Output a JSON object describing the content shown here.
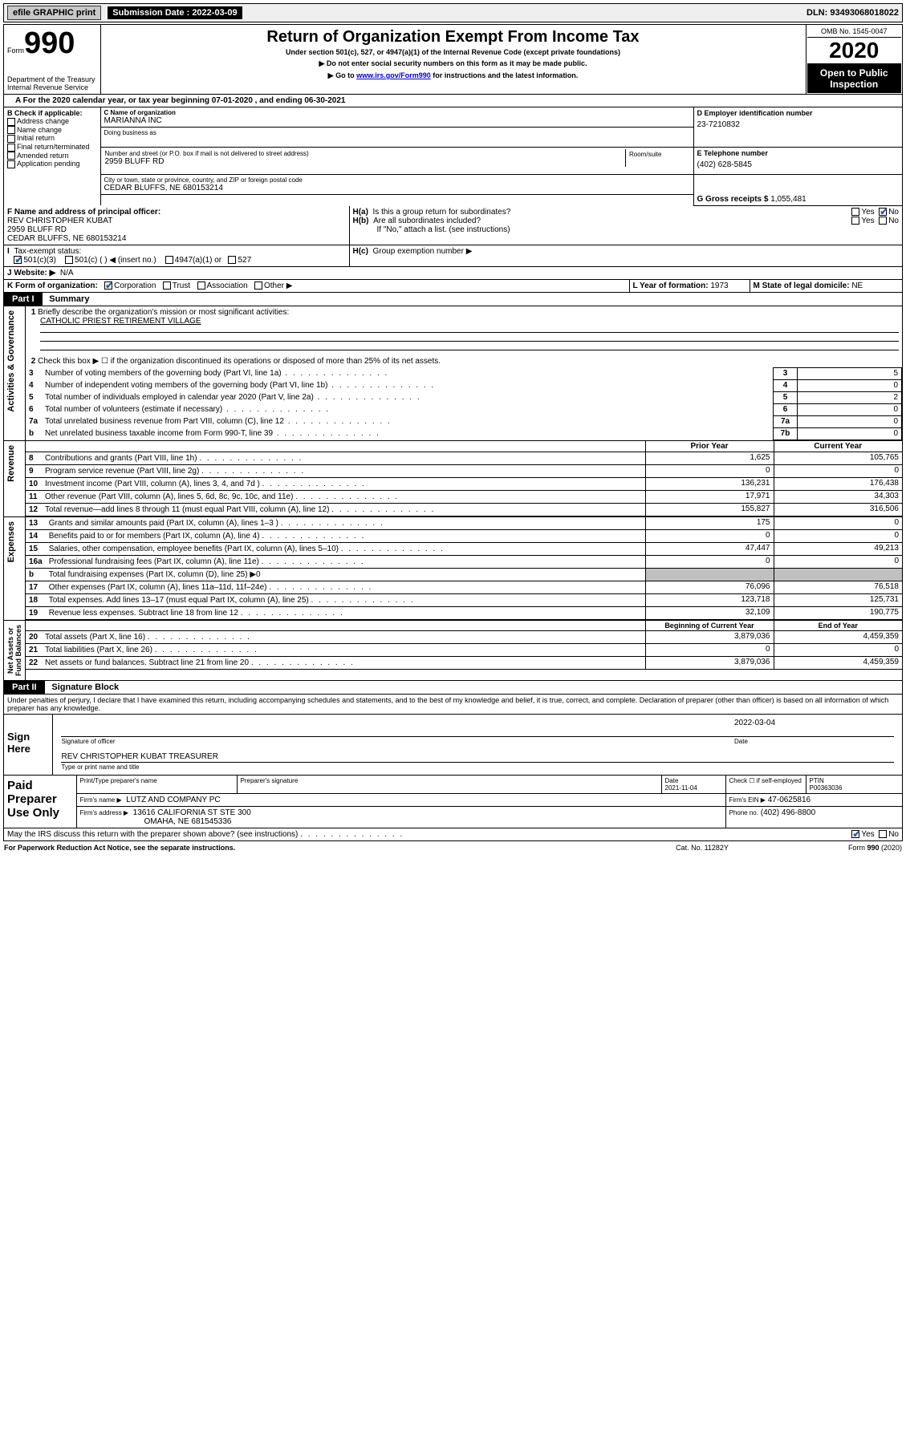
{
  "header_bar": {
    "efile": "efile GRAPHIC print",
    "submission_label": "Submission Date : 2022-03-09",
    "dln": "DLN: 93493068018022"
  },
  "form_header": {
    "form_word": "Form",
    "form_number": "990",
    "dept": "Department of the Treasury",
    "irs": "Internal Revenue Service",
    "title": "Return of Organization Exempt From Income Tax",
    "subtitle": "Under section 501(c), 527, or 4947(a)(1) of the Internal Revenue Code (except private foundations)",
    "line1": "▶ Do not enter social security numbers on this form as it may be made public.",
    "line2_pre": "▶ Go to ",
    "line2_link": "www.irs.gov/Form990",
    "line2_post": " for instructions and the latest information.",
    "omb": "OMB No. 1545-0047",
    "year": "2020",
    "inspection": "Open to Public Inspection"
  },
  "period": {
    "text_pre": "For the 2020 calendar year, or tax year beginning ",
    "begin": "07-01-2020",
    "mid": " , and ending ",
    "end": "06-30-2021"
  },
  "section_b": {
    "label": "B Check if applicable:",
    "addr_change": "Address change",
    "name_change": "Name change",
    "initial_return": "Initial return",
    "final_return": "Final return/terminated",
    "amended": "Amended return",
    "app_pending": "Application pending"
  },
  "section_c": {
    "name_label": "C Name of organization",
    "name": "MARIANNA INC",
    "dba_label": "Doing business as",
    "street_label": "Number and street (or P.O. box if mail is not delivered to street address)",
    "room_label": "Room/suite",
    "street": "2959 BLUFF RD",
    "city_label": "City or town, state or province, country, and ZIP or foreign postal code",
    "city": "CEDAR BLUFFS, NE  680153214"
  },
  "section_d": {
    "label": "D Employer identification number",
    "ein": "23-7210832"
  },
  "section_e": {
    "label": "E Telephone number",
    "phone": "(402) 628-5845"
  },
  "section_g": {
    "label": "G Gross receipts $",
    "amount": "1,055,481"
  },
  "section_f": {
    "label": "F Name and address of principal officer:",
    "name": "REV CHRISTOPHER KUBAT",
    "street": "2959 BLUFF RD",
    "city": "CEDAR BLUFFS, NE  680153214"
  },
  "section_h": {
    "ha": "Is this a group return for subordinates?",
    "hb": "Are all subordinates included?",
    "hb_note": "If \"No,\" attach a list. (see instructions)",
    "hc": "Group exemption number ▶"
  },
  "section_i": {
    "label": "Tax-exempt status:",
    "opt1": "501(c)(3)",
    "opt2": "501(c) (   ) ◀ (insert no.)",
    "opt3": "4947(a)(1) or",
    "opt4": "527"
  },
  "section_j": {
    "label": "J   Website: ▶",
    "value": "N/A"
  },
  "section_k": {
    "label": "K Form of organization:",
    "corp": "Corporation",
    "trust": "Trust",
    "assoc": "Association",
    "other": "Other ▶"
  },
  "section_l": {
    "label": "L Year of formation:",
    "value": "1973"
  },
  "section_m": {
    "label": "M State of legal domicile:",
    "value": "NE"
  },
  "part1": {
    "title": "Part I",
    "subtitle": "Summary",
    "line1_label": "Briefly describe the organization's mission or most significant activities:",
    "line1_value": "CATHOLIC PRIEST RETIREMENT VILLAGE",
    "line2": "Check this box ▶ ☐  if the organization discontinued its operations or disposed of more than 25% of its net assets.",
    "rows": [
      {
        "n": "3",
        "t": "Number of voting members of the governing body (Part VI, line 1a)",
        "box": "3",
        "v": "5"
      },
      {
        "n": "4",
        "t": "Number of independent voting members of the governing body (Part VI, line 1b)",
        "box": "4",
        "v": "0"
      },
      {
        "n": "5",
        "t": "Total number of individuals employed in calendar year 2020 (Part V, line 2a)",
        "box": "5",
        "v": "2"
      },
      {
        "n": "6",
        "t": "Total number of volunteers (estimate if necessary)",
        "box": "6",
        "v": "0"
      },
      {
        "n": "7a",
        "t": "Total unrelated business revenue from Part VIII, column (C), line 12",
        "box": "7a",
        "v": "0"
      },
      {
        "n": "b",
        "t": "Net unrelated business taxable income from Form 990-T, line 39",
        "box": "7b",
        "v": "0"
      }
    ],
    "col_headers": {
      "prior": "Prior Year",
      "current": "Current Year",
      "begin": "Beginning of Current Year",
      "end": "End of Year"
    },
    "revenue": [
      {
        "n": "8",
        "t": "Contributions and grants (Part VIII, line 1h)",
        "p": "1,625",
        "c": "105,765"
      },
      {
        "n": "9",
        "t": "Program service revenue (Part VIII, line 2g)",
        "p": "0",
        "c": "0"
      },
      {
        "n": "10",
        "t": "Investment income (Part VIII, column (A), lines 3, 4, and 7d )",
        "p": "136,231",
        "c": "176,438"
      },
      {
        "n": "11",
        "t": "Other revenue (Part VIII, column (A), lines 5, 6d, 8c, 9c, 10c, and 11e)",
        "p": "17,971",
        "c": "34,303"
      },
      {
        "n": "12",
        "t": "Total revenue—add lines 8 through 11 (must equal Part VIII, column (A), line 12)",
        "p": "155,827",
        "c": "316,506"
      }
    ],
    "expenses": [
      {
        "n": "13",
        "t": "Grants and similar amounts paid (Part IX, column (A), lines 1–3 )",
        "p": "175",
        "c": "0"
      },
      {
        "n": "14",
        "t": "Benefits paid to or for members (Part IX, column (A), line 4)",
        "p": "0",
        "c": "0"
      },
      {
        "n": "15",
        "t": "Salaries, other compensation, employee benefits (Part IX, column (A), lines 5–10)",
        "p": "47,447",
        "c": "49,213"
      },
      {
        "n": "16a",
        "t": "Professional fundraising fees (Part IX, column (A), line 11e)",
        "p": "0",
        "c": "0"
      },
      {
        "n": "b",
        "t": "Total fundraising expenses (Part IX, column (D), line 25) ▶0",
        "p": "",
        "c": "",
        "gray": true
      },
      {
        "n": "17",
        "t": "Other expenses (Part IX, column (A), lines 11a–11d, 11f–24e)",
        "p": "76,096",
        "c": "76,518"
      },
      {
        "n": "18",
        "t": "Total expenses. Add lines 13–17 (must equal Part IX, column (A), line 25)",
        "p": "123,718",
        "c": "125,731"
      },
      {
        "n": "19",
        "t": "Revenue less expenses. Subtract line 18 from line 12",
        "p": "32,109",
        "c": "190,775"
      }
    ],
    "netassets": [
      {
        "n": "20",
        "t": "Total assets (Part X, line 16)",
        "p": "3,879,036",
        "c": "4,459,359"
      },
      {
        "n": "21",
        "t": "Total liabilities (Part X, line 26)",
        "p": "0",
        "c": "0"
      },
      {
        "n": "22",
        "t": "Net assets or fund balances. Subtract line 21 from line 20",
        "p": "3,879,036",
        "c": "4,459,359"
      }
    ],
    "side_labels": {
      "governance": "Activities & Governance",
      "revenue": "Revenue",
      "expenses": "Expenses",
      "netassets": "Net Assets or\nFund Balances"
    }
  },
  "part2": {
    "title": "Part II",
    "subtitle": "Signature Block",
    "perjury": "Under penalties of perjury, I declare that I have examined this return, including accompanying schedules and statements, and to the best of my knowledge and belief, it is true, correct, and complete. Declaration of preparer (other than officer) is based on all information of which preparer has any knowledge.",
    "sign_here": "Sign Here",
    "sig_officer": "Signature of officer",
    "sig_date": "2022-03-04",
    "date_label": "Date",
    "officer_name": "REV CHRISTOPHER KUBAT TREASURER",
    "type_label": "Type or print name and title",
    "paid_prep": "Paid Preparer Use Only",
    "print_name_label": "Print/Type preparer's name",
    "prep_sig_label": "Preparer's signature",
    "prep_date_label": "Date",
    "prep_date": "2021-11-04",
    "check_self": "Check ☐ if self-employed",
    "ptin_label": "PTIN",
    "ptin": "P00363036",
    "firm_name_label": "Firm's name   ▶",
    "firm_name": "LUTZ AND COMPANY PC",
    "firm_ein_label": "Firm's EIN ▶",
    "firm_ein": "47-0625816",
    "firm_addr_label": "Firm's address ▶",
    "firm_addr1": "13616 CALIFORNIA ST STE 300",
    "firm_addr2": "OMAHA, NE  681545336",
    "phone_label": "Phone no.",
    "phone": "(402) 496-8800",
    "discuss": "May the IRS discuss this return with the preparer shown above? (see instructions)"
  },
  "footer": {
    "left": "For Paperwork Reduction Act Notice, see the separate instructions.",
    "mid": "Cat. No. 11282Y",
    "right": "Form 990 (2020)"
  }
}
